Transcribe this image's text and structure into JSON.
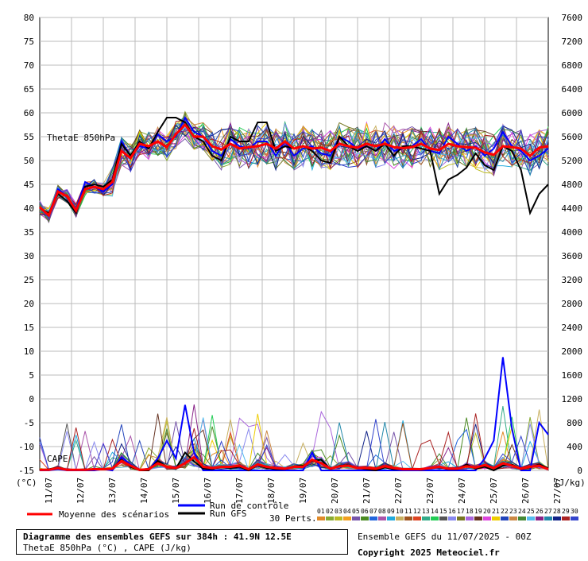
{
  "chart_data": {
    "type": "line",
    "title": "Diagramme des ensembles GEFS sur 384h : 41.9N 12.5E",
    "subtitle": "ThetaE 850hPa (°C) , CAPE (J/kg)",
    "left_axis": {
      "unit_label": "(°C)",
      "range": [
        -15,
        80
      ],
      "ticks": [
        80,
        75,
        70,
        65,
        60,
        55,
        50,
        45,
        40,
        35,
        30,
        25,
        20,
        15,
        10,
        5,
        0,
        -5,
        -10,
        -15
      ]
    },
    "right_axis": {
      "unit_label": "(J/kg)",
      "range": [
        0,
        7600
      ],
      "ticks": [
        7600,
        7200,
        6800,
        6400,
        6000,
        5600,
        5200,
        4800,
        4400,
        4000,
        3600,
        3200,
        2800,
        2400,
        2000,
        1600,
        1200,
        800,
        400,
        0
      ]
    },
    "x_labels": [
      "11/07",
      "12/07",
      "13/07",
      "14/07",
      "15/07",
      "16/07",
      "17/07",
      "18/07",
      "19/07",
      "20/07",
      "21/07",
      "22/07",
      "23/07",
      "24/07",
      "25/07",
      "26/07",
      "27/07"
    ],
    "series_labels": {
      "thetae": "ThetaE 850hPa",
      "cape": "CAPE"
    },
    "thetae_mean": [
      40.2,
      38.5,
      43.5,
      42.5,
      39.5,
      44,
      44.5,
      44,
      45.5,
      52,
      50.5,
      53.5,
      53,
      54,
      52.8,
      55.5,
      57.5,
      55,
      55,
      53,
      52.3,
      53.5,
      52.5,
      52.8,
      53,
      53.5,
      52.5,
      54,
      52.5,
      53,
      52.5,
      52.7,
      52,
      53.5,
      53,
      52.7,
      53.5,
      53,
      53.5,
      52.8,
      52.6,
      52.8,
      53.5,
      52.5,
      52.2,
      53.5,
      53,
      52.8,
      52.7,
      51.7,
      51.2,
      53,
      52.8,
      52.5,
      51,
      52.7,
      53
    ],
    "thetae_control": [
      40,
      38.7,
      44,
      42.5,
      39.7,
      45.5,
      44.5,
      43.5,
      45,
      54,
      51,
      53,
      52.5,
      55.5,
      54,
      55,
      59,
      56,
      55,
      52,
      51,
      54.5,
      53,
      52.5,
      54,
      54,
      51,
      54,
      51,
      52.5,
      53,
      51.5,
      51,
      55,
      54,
      52.5,
      53,
      52,
      54.5,
      52,
      52.5,
      53,
      54.5,
      52,
      51.5,
      55,
      53.5,
      52,
      53,
      51,
      52.5,
      56,
      53,
      52,
      50,
      51,
      52.5
    ],
    "thetae_gfs": [
      40,
      39,
      43,
      41.5,
      39,
      44.5,
      45,
      44.5,
      46,
      53.5,
      51,
      54,
      52.5,
      56,
      59,
      59,
      58,
      55,
      54,
      51,
      50,
      55,
      54,
      54,
      58,
      58,
      52,
      53,
      52.5,
      53,
      52,
      50,
      49.5,
      55,
      53,
      52,
      53,
      52,
      53.5,
      51,
      53,
      53,
      52.5,
      52,
      43,
      46,
      47,
      48.5,
      51.5,
      49,
      48,
      53,
      52,
      48,
      39,
      43,
      45
    ],
    "cape_mean": [
      10,
      10,
      40,
      10,
      10,
      10,
      20,
      20,
      30,
      160,
      80,
      10,
      20,
      120,
      60,
      40,
      120,
      220,
      60,
      40,
      60,
      60,
      80,
      20,
      100,
      60,
      40,
      30,
      60,
      60,
      180,
      120,
      30,
      70,
      80,
      40,
      40,
      30,
      70,
      40,
      20,
      20,
      20,
      40,
      60,
      30,
      30,
      70,
      50,
      90,
      40,
      120,
      80,
      30,
      60,
      80,
      20
    ],
    "cape_control": [
      0,
      0,
      20,
      0,
      0,
      0,
      0,
      20,
      0,
      220,
      100,
      0,
      0,
      200,
      500,
      200,
      1100,
      300,
      0,
      0,
      0,
      0,
      0,
      0,
      0,
      0,
      0,
      0,
      0,
      0,
      300,
      0,
      0,
      0,
      0,
      0,
      0,
      0,
      0,
      0,
      0,
      0,
      0,
      0,
      0,
      0,
      0,
      0,
      0,
      200,
      500,
      1900,
      700,
      0,
      0,
      800,
      600
    ],
    "cape_gfs": [
      10,
      20,
      50,
      10,
      10,
      20,
      20,
      20,
      30,
      180,
      60,
      0,
      0,
      160,
      60,
      30,
      300,
      150,
      30,
      20,
      60,
      40,
      60,
      0,
      90,
      40,
      20,
      20,
      70,
      80,
      160,
      180,
      20,
      80,
      90,
      40,
      20,
      0,
      50,
      20,
      20,
      20,
      10,
      40,
      50,
      20,
      20,
      100,
      30,
      60,
      0,
      80,
      100,
      20,
      50,
      100,
      40
    ],
    "perts_count": 30
  },
  "legend": {
    "mean": "Moyenne des scénarios",
    "control": "Run de contrôle",
    "gfs": "Run GFS",
    "perts_label": "30 Perts.",
    "pert_numbers": [
      "01",
      "02",
      "03",
      "04",
      "05",
      "06",
      "07",
      "08",
      "09",
      "10",
      "11",
      "12",
      "13",
      "14",
      "15",
      "16",
      "17",
      "18",
      "19",
      "20",
      "21",
      "22",
      "23",
      "24",
      "25",
      "26",
      "27",
      "28",
      "29",
      "30"
    ],
    "pert_colors": [
      "#e08a2a",
      "#88aa33",
      "#bbbb22",
      "#f2a020",
      "#7755aa",
      "#4a8a22",
      "#2266dd",
      "#aa55aa",
      "#22aadd",
      "#c8b060",
      "#a05520",
      "#dd4422",
      "#33aa88",
      "#22cc55",
      "#555555",
      "#8888ee",
      "#777722",
      "#aa66dd",
      "#663322",
      "#dd44dd",
      "#eecc00",
      "#2244bb",
      "#cc8844",
      "#448833",
      "#55bbee",
      "#882288",
      "#2288aa",
      "#112288",
      "#aa2222",
      "#3344cc"
    ],
    "colors": {
      "mean": "#ff0000",
      "control": "#0000ff",
      "gfs": "#000000"
    }
  },
  "footer": {
    "title": "Diagramme des ensembles GEFS sur 384h : 41.9N 12.5E",
    "subtitle": "ThetaE 850hPa (°C) , CAPE (J/kg)",
    "run": "Ensemble GEFS du 11/07/2025 - 00Z",
    "copyright": "Copyright 2025 Meteociel.fr"
  }
}
